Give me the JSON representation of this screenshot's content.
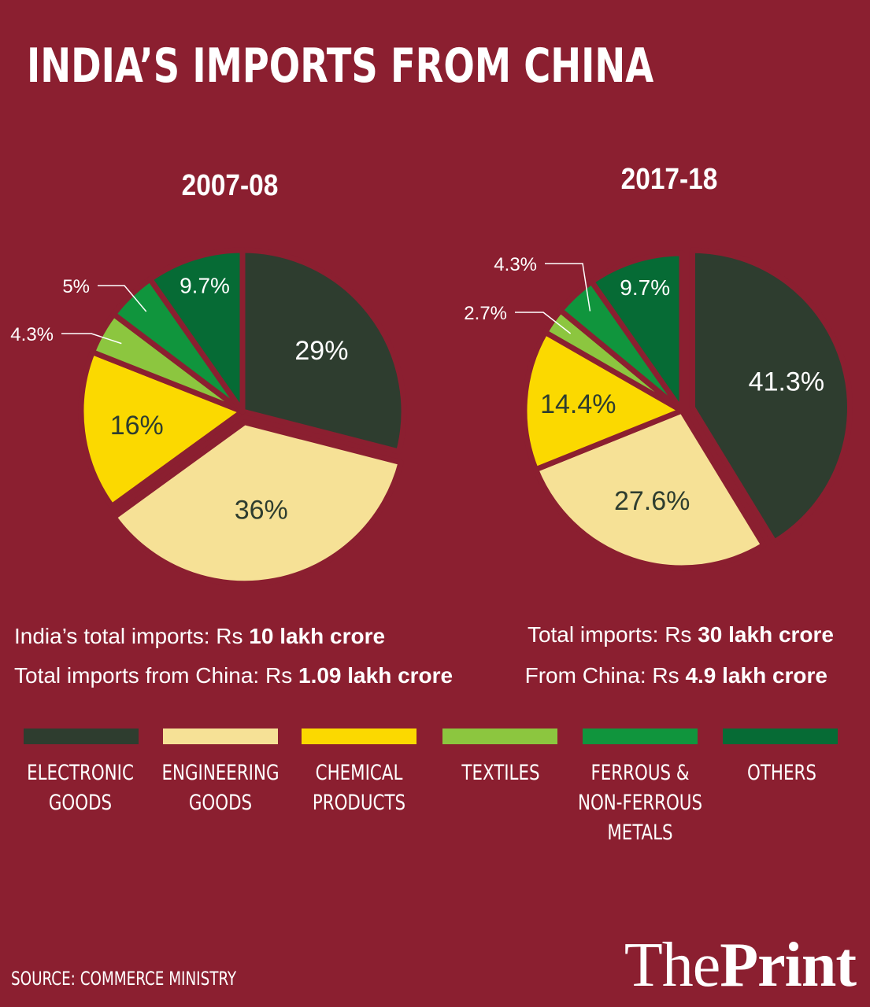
{
  "title": "INDIA’S IMPORTS FROM CHINA",
  "colors": {
    "background": "#8b1f30",
    "electronic": "#2e3d2f",
    "engineering": "#f6e196",
    "chemical": "#fbd900",
    "textiles": "#8cc63f",
    "metals": "#10953d",
    "others": "#066b35"
  },
  "chart_data": [
    {
      "type": "pie",
      "title": "2007-08",
      "categories": [
        "ELECTRONIC GOODS",
        "ENGINEERING GOODS",
        "CHEMICAL PRODUCTS",
        "TEXTILES",
        "FERROUS & NON-FERROUS METALS",
        "OTHERS"
      ],
      "values": [
        29,
        36,
        16,
        4.3,
        5,
        9.7
      ],
      "labels": [
        "29%",
        "36%",
        "16%",
        "4.3%",
        "5%",
        "9.7%"
      ],
      "exploded": "ENGINEERING GOODS"
    },
    {
      "type": "pie",
      "title": "2017-18",
      "categories": [
        "ELECTRONIC GOODS",
        "ENGINEERING GOODS",
        "CHEMICAL PRODUCTS",
        "TEXTILES",
        "FERROUS & NON-FERROUS METALS",
        "OTHERS"
      ],
      "values": [
        41.3,
        27.6,
        14.4,
        2.7,
        4.3,
        9.7
      ],
      "labels": [
        "41.3%",
        "27.6%",
        "14.4%",
        "2.7%",
        "4.3%",
        "9.7%"
      ],
      "exploded": "ELECTRONIC GOODS"
    }
  ],
  "info_left": {
    "line1_prefix": "India’s total imports: Rs ",
    "line1_value": "10 lakh crore",
    "line2_prefix": "Total imports from China: Rs ",
    "line2_value": "1.09 lakh crore"
  },
  "info_right": {
    "line1_prefix": "Total imports: Rs ",
    "line1_value": "30 lakh crore",
    "line2_prefix": "From China: Rs ",
    "line2_value": "4.9 lakh crore"
  },
  "legend": [
    {
      "line1": "ELECTRONIC",
      "line2": "GOODS",
      "line3": "",
      "color": "#2e3d2f"
    },
    {
      "line1": "ENGINEERING",
      "line2": "GOODS",
      "line3": "",
      "color": "#f6e196"
    },
    {
      "line1": "CHEMICAL",
      "line2": "PRODUCTS",
      "line3": "",
      "color": "#fbd900"
    },
    {
      "line1": "TEXTILES",
      "line2": "",
      "line3": "",
      "color": "#8cc63f"
    },
    {
      "line1": "FERROUS &",
      "line2": "NON-FERROUS",
      "line3": "METALS",
      "color": "#10953d"
    },
    {
      "line1": "OTHERS",
      "line2": "",
      "line3": "",
      "color": "#066b35"
    }
  ],
  "source": "SOURCE: COMMERCE MINISTRY",
  "brand": {
    "part1": "The",
    "part2": "Print"
  }
}
